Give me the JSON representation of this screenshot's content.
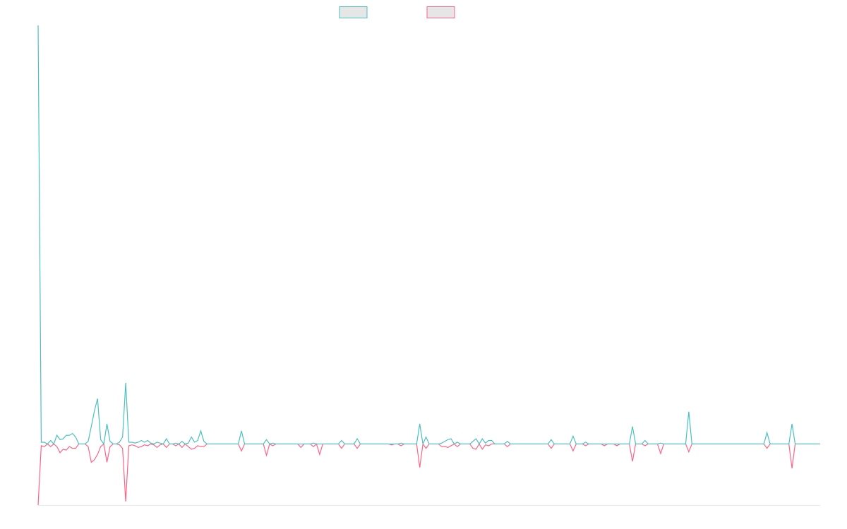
{
  "chart_data": {
    "type": "line",
    "title": "",
    "xlabel": "",
    "ylabel": "",
    "grid": false,
    "legend_placement": "top-center",
    "ylim": [
      -7,
      48
    ],
    "colors": {
      "series_a": "#4bc0c0",
      "series_b": "#ff6384",
      "legend_fill": "#e6e6e6",
      "axis": "#e6e6e6"
    },
    "series": [
      {
        "values": [
          48,
          0.2,
          0.2,
          0,
          0.4,
          0,
          1,
          0.5,
          0.6,
          1,
          1,
          1.2,
          0.8,
          0,
          0,
          0,
          0.3,
          2,
          3.8,
          5.2,
          0.5,
          0,
          2.3,
          0.3,
          0,
          0,
          0.2,
          0.8,
          7,
          0.2,
          0.2,
          0.1,
          0.2,
          0.4,
          0.2,
          0.4,
          0.1,
          0,
          0.2,
          0.1,
          0,
          0.6,
          0,
          0,
          0.1,
          0,
          0.3,
          0,
          0.1,
          0.8,
          0.2,
          0.4,
          1.5,
          0.3,
          0,
          0,
          0,
          0,
          0,
          0,
          0,
          0,
          0,
          0,
          0,
          1.5,
          0,
          0,
          0,
          0,
          0,
          0,
          0,
          0.5,
          0,
          0.1,
          0,
          0,
          0,
          0,
          0,
          0,
          0,
          0,
          0,
          0,
          0,
          0,
          0.1,
          0,
          0,
          0,
          0,
          0,
          0,
          0,
          0,
          0.4,
          0,
          0,
          0,
          0,
          0.6,
          0,
          0,
          0,
          0,
          0,
          0,
          0,
          0,
          0,
          0,
          0,
          0,
          0,
          0.1,
          0,
          0,
          0,
          0,
          0,
          2.3,
          0,
          0.8,
          0,
          0,
          0,
          0,
          0.1,
          0.3,
          0.5,
          0.6,
          0,
          0.2,
          0,
          0,
          0,
          0,
          0.3,
          0.6,
          0,
          0.6,
          0.1,
          0.4,
          0.4,
          0,
          0,
          0,
          0,
          0.3,
          0,
          0,
          0,
          0,
          0,
          0,
          0,
          0,
          0,
          0,
          0,
          0,
          0,
          0.5,
          0,
          0,
          0,
          0,
          0,
          0,
          0.9,
          0,
          0,
          0,
          0.2,
          0,
          0,
          0,
          0,
          0,
          0,
          0,
          0,
          0,
          0,
          0,
          0,
          0,
          0,
          2,
          0,
          0,
          0,
          0.4,
          0,
          0,
          0,
          0,
          0.1,
          0,
          0,
          0,
          0,
          0,
          0,
          0,
          0,
          3.7,
          0,
          0,
          0,
          0,
          0,
          0,
          0,
          0,
          0,
          0,
          0,
          0,
          0,
          0,
          0,
          0,
          0,
          0,
          0,
          0,
          0,
          0,
          0,
          0,
          1.3,
          0,
          0,
          0,
          0,
          0,
          0,
          0,
          2.3,
          0,
          0,
          0,
          0,
          0,
          0,
          0,
          0,
          0
        ]
      },
      {
        "values": [
          -7,
          -0.2,
          -0.3,
          0,
          -0.3,
          0,
          -0.3,
          -1,
          -0.6,
          -0.7,
          -0.3,
          -0.5,
          -0.5,
          0,
          0,
          0,
          -0.3,
          -2.1,
          -1.8,
          -1.2,
          -0.3,
          0,
          -2.1,
          -0.3,
          0,
          0,
          -0.1,
          -0.5,
          -6.6,
          -0.2,
          -0.1,
          -0.2,
          -0.4,
          -0.3,
          -0.1,
          -0.2,
          0,
          -0.1,
          -0.4,
          -0.1,
          0,
          -0.4,
          0,
          0,
          -0.2,
          0,
          -0.4,
          0,
          -0.3,
          -0.6,
          -0.5,
          -0.2,
          -0.3,
          -0.3,
          0,
          0,
          0,
          0,
          0,
          0,
          0,
          0,
          0,
          0,
          0,
          -0.8,
          0,
          0,
          0,
          0,
          0,
          0,
          0,
          -1.3,
          0,
          -0.2,
          0,
          0,
          0,
          0,
          0,
          0,
          0,
          0,
          -0.4,
          0,
          0,
          0,
          -0.3,
          0,
          -1.2,
          0,
          0,
          0,
          0,
          0,
          0,
          -0.5,
          0,
          0,
          0,
          0,
          -0.5,
          0,
          0,
          0,
          0,
          0,
          0,
          0,
          0,
          0,
          0,
          -0.1,
          0,
          0,
          -0.2,
          0,
          0,
          0,
          0,
          0,
          -2.7,
          0,
          -0.5,
          0,
          0,
          0,
          0,
          -0.3,
          -0.3,
          -0.4,
          -0.2,
          0,
          -0.3,
          0,
          0,
          0,
          0,
          -0.5,
          -0.6,
          0,
          -0.6,
          -0.1,
          -0.2,
          0,
          0,
          0,
          0,
          0,
          -0.3,
          0,
          0,
          0,
          0,
          0,
          0,
          0,
          0,
          0,
          0,
          0,
          0,
          0,
          -0.5,
          0,
          0,
          0,
          0,
          0,
          0,
          -0.8,
          0,
          0,
          0,
          -0.2,
          0,
          0,
          0,
          0,
          0,
          -0.2,
          0,
          0,
          0,
          -0.2,
          0,
          0,
          0,
          0,
          -2,
          0,
          0,
          0,
          -0.2,
          0,
          0,
          0,
          0,
          -1.1,
          0,
          0,
          0,
          0,
          0,
          0,
          0,
          0,
          -0.9,
          0,
          0,
          0,
          0,
          0,
          0,
          0,
          0,
          0,
          0,
          0,
          0,
          0,
          0,
          0,
          0,
          0,
          0,
          0,
          0,
          0,
          0,
          0,
          0,
          -0.5,
          0,
          0,
          0,
          0,
          0,
          0,
          0,
          -2.8,
          0,
          0,
          0,
          0,
          0,
          0,
          0,
          0,
          0
        ]
      }
    ]
  }
}
